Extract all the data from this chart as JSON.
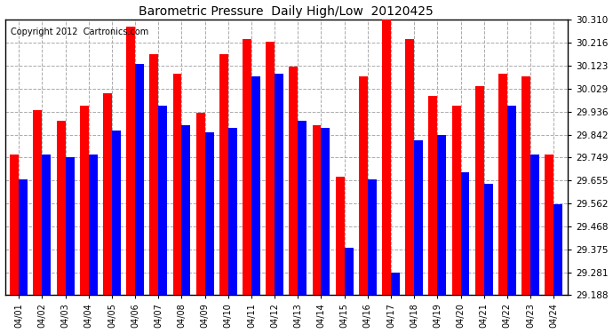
{
  "title": "Barometric Pressure  Daily High/Low  20120425",
  "copyright": "Copyright 2012  Cartronics.com",
  "dates": [
    "04/01",
    "04/02",
    "04/03",
    "04/04",
    "04/05",
    "04/06",
    "04/07",
    "04/08",
    "04/09",
    "04/10",
    "04/11",
    "04/12",
    "04/13",
    "04/14",
    "04/15",
    "04/16",
    "04/17",
    "04/18",
    "04/19",
    "04/20",
    "04/21",
    "04/22",
    "04/23",
    "04/24"
  ],
  "highs": [
    29.76,
    29.94,
    29.9,
    29.96,
    30.01,
    30.28,
    30.17,
    30.09,
    29.93,
    30.17,
    30.23,
    30.22,
    30.12,
    29.88,
    29.67,
    30.08,
    30.31,
    30.23,
    30.0,
    29.96,
    30.04,
    30.09,
    30.08,
    29.76
  ],
  "lows": [
    29.66,
    29.76,
    29.75,
    29.76,
    29.86,
    30.13,
    29.96,
    29.88,
    29.85,
    29.87,
    30.08,
    30.09,
    29.9,
    29.87,
    29.38,
    29.66,
    29.28,
    29.82,
    29.84,
    29.69,
    29.64,
    29.96,
    29.76,
    29.56
  ],
  "high_color": "#ff0000",
  "low_color": "#0000ff",
  "bg_color": "#ffffff",
  "grid_color": "#aaaaaa",
  "ymin": 29.188,
  "ymax": 30.31,
  "yticks": [
    29.188,
    29.281,
    29.375,
    29.468,
    29.562,
    29.655,
    29.749,
    29.842,
    29.936,
    30.029,
    30.123,
    30.216,
    30.31
  ]
}
